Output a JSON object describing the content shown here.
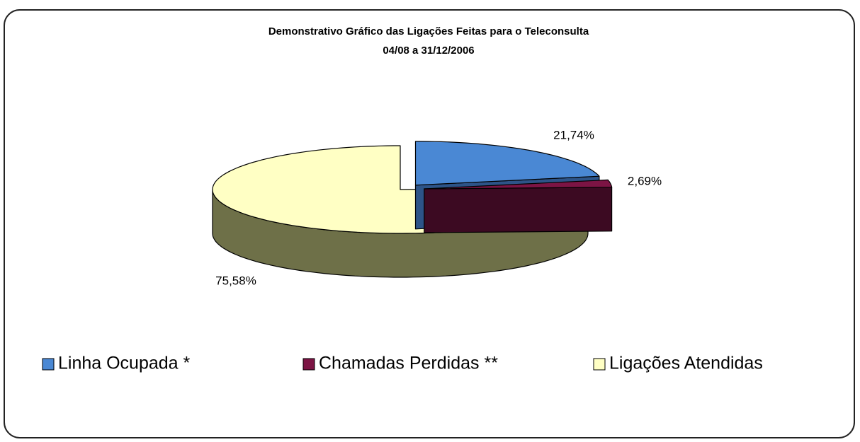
{
  "chart_data": {
    "type": "pie",
    "title": "Demonstrativo Gráfico das Ligações Feitas para o Teleconsulta",
    "subtitle": "04/08 a 31/12/2006",
    "categories": [
      "Linha Ocupada *",
      "Chamadas Perdidas **",
      "Ligações Atendidas"
    ],
    "values": [
      21.74,
      2.69,
      75.58
    ],
    "value_labels": [
      "21,74%",
      "2,69%",
      "75,58%"
    ],
    "colors": [
      "#4a88d4",
      "#7c1444",
      "#ffffc4"
    ],
    "side_colors": [
      "#2d5488",
      "#3c0a22",
      "#6e7048"
    ],
    "legend": "bottom"
  }
}
